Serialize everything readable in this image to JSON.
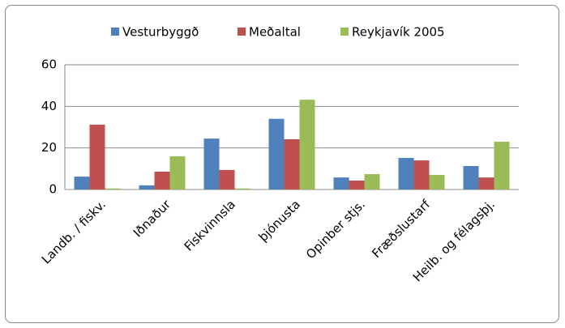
{
  "chart_data": {
    "type": "bar",
    "categories": [
      "Landb. / fiskv.",
      "Iðnaður",
      "Fiskvinnsla",
      "þjónusta",
      "Opinber stjs.",
      "Fræðslustarf",
      "Heilb. og félagsþj."
    ],
    "series": [
      {
        "name": "Vesturbyggð",
        "color": "#4f81bd",
        "values": [
          6.2,
          2,
          24.5,
          34,
          5.8,
          15.2,
          11.3
        ]
      },
      {
        "name": "Meðaltal",
        "color": "#c0504d",
        "values": [
          31.2,
          8.6,
          9.4,
          24.2,
          4.3,
          14,
          5.8
        ]
      },
      {
        "name": "Reykjavík  2005",
        "color": "#9bbb59",
        "values": [
          0.5,
          16,
          0.5,
          43.2,
          7.4,
          7,
          23
        ]
      }
    ],
    "ylim": [
      0,
      60
    ],
    "yticks": [
      0,
      20,
      40,
      60
    ],
    "grid": true,
    "legend": "top"
  }
}
